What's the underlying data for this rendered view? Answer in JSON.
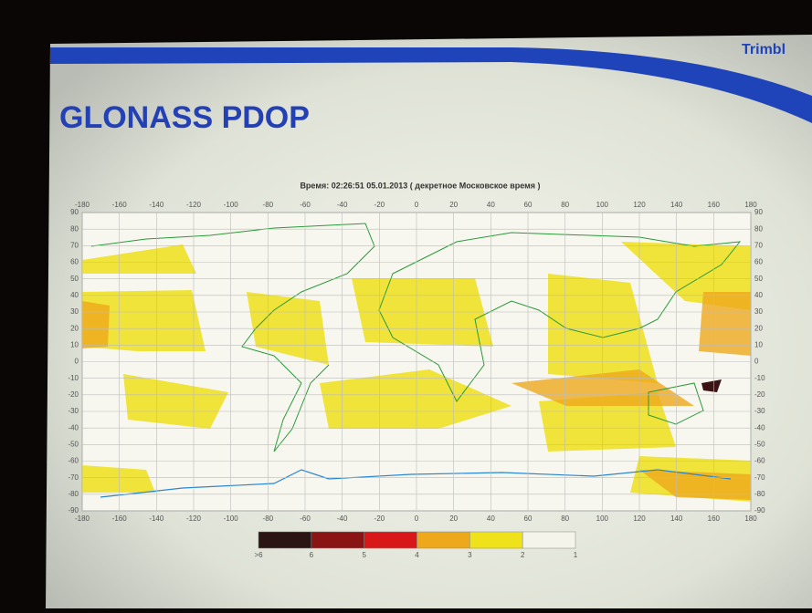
{
  "logo": "Trimbl",
  "slide": {
    "title": "GLONASS PDOP",
    "caption": "Время: 02:26:51    05.01.2013   ( декретное Московское время )"
  },
  "map": {
    "xlim": [
      -180,
      180
    ],
    "ylim": [
      -90,
      90
    ],
    "xticks": [
      -180,
      -160,
      -140,
      -120,
      -100,
      -80,
      -60,
      -40,
      -20,
      0,
      20,
      40,
      60,
      80,
      100,
      120,
      140,
      160,
      180
    ],
    "yticks": [
      90,
      80,
      70,
      60,
      50,
      40,
      30,
      20,
      10,
      0,
      -10,
      -20,
      -30,
      -40,
      -50,
      -60,
      -70,
      -80,
      -90
    ],
    "grid": true,
    "colorbar": {
      "labels": [
        ">6",
        "6",
        "5",
        "4",
        "3",
        "2",
        "1"
      ],
      "colors": [
        "#2a1414",
        "#8a1414",
        "#d81818",
        "#eea81c",
        "#efe21a",
        "#f4f4ea"
      ]
    }
  }
}
